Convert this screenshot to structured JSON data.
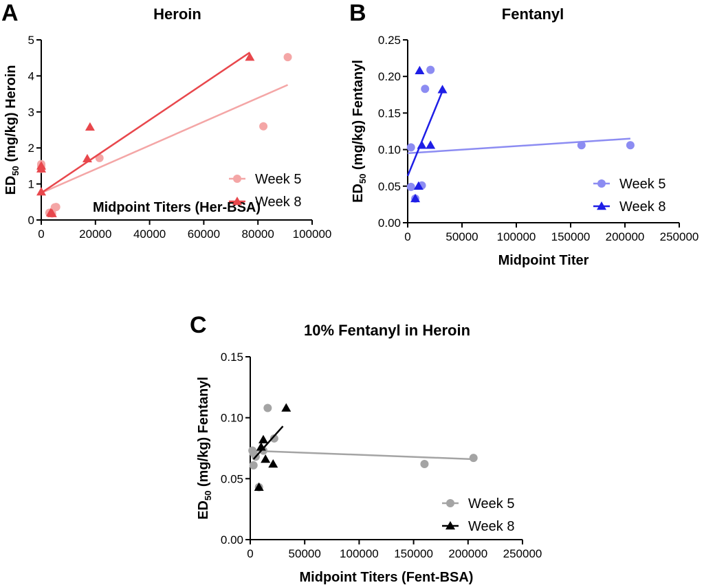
{
  "chart_data": [
    {
      "type": "scatter",
      "panel_letter": "A",
      "title": "Heroin",
      "xlabel": "Midpoint Titers (Her-BSA)",
      "ylabel_main": "ED",
      "ylabel_sub": "50",
      "ylabel_rest": " (mg/kg) Heroin",
      "xlim": [
        0,
        100000
      ],
      "ylim": [
        0,
        5
      ],
      "xticks": [
        0,
        20000,
        40000,
        60000,
        80000,
        100000
      ],
      "yticks": [
        0,
        1,
        2,
        3,
        4,
        5
      ],
      "ytick_decimals": 0,
      "legend_position": "bottom-right",
      "grid": false,
      "series": [
        {
          "name": "Week 5",
          "marker": "circle",
          "color": "#f4a6a6",
          "points": [
            [
              0,
              1.55
            ],
            [
              0,
              1.5
            ],
            [
              0,
              1.42
            ],
            [
              3000,
              0.2
            ],
            [
              4000,
              0.18
            ],
            [
              5000,
              0.35
            ],
            [
              5500,
              0.36
            ],
            [
              21500,
              1.72
            ],
            [
              82000,
              2.6
            ],
            [
              91000,
              4.52
            ]
          ],
          "fit": [
            [
              0,
              0.75
            ],
            [
              91000,
              3.75
            ]
          ]
        },
        {
          "name": "Week 8",
          "marker": "triangle",
          "color": "#e8474c",
          "points": [
            [
              0,
              1.5
            ],
            [
              0,
              1.42
            ],
            [
              0,
              0.78
            ],
            [
              3500,
              0.2
            ],
            [
              4000,
              0.18
            ],
            [
              17000,
              1.7
            ],
            [
              18000,
              2.58
            ],
            [
              77000,
              4.52
            ]
          ],
          "fit": [
            [
              0,
              0.75
            ],
            [
              77000,
              4.65
            ]
          ]
        }
      ]
    },
    {
      "type": "scatter",
      "panel_letter": "B",
      "title": "Fentanyl",
      "xlabel": "Midpoint Titer",
      "ylabel_main": "ED",
      "ylabel_sub": "50",
      "ylabel_rest": " (mg/kg) Fentanyl",
      "xlim": [
        0,
        250000
      ],
      "ylim": [
        0,
        0.25
      ],
      "xticks": [
        0,
        50000,
        100000,
        150000,
        200000,
        250000
      ],
      "yticks": [
        0,
        0.05,
        0.1,
        0.15,
        0.2,
        0.25
      ],
      "ytick_decimals": 2,
      "legend_position": "bottom-right",
      "grid": false,
      "series": [
        {
          "name": "Week 5",
          "marker": "circle",
          "color": "#8c8cf2",
          "points": [
            [
              3000,
              0.103
            ],
            [
              3000,
              0.049
            ],
            [
              7000,
              0.033
            ],
            [
              13000,
              0.051
            ],
            [
              16000,
              0.183
            ],
            [
              21000,
              0.209
            ],
            [
              160000,
              0.106
            ],
            [
              205000,
              0.106
            ]
          ],
          "fit": [
            [
              0,
              0.095
            ],
            [
              205000,
              0.115
            ]
          ]
        },
        {
          "name": "Week 8",
          "marker": "triangle",
          "color": "#1e1ee6",
          "points": [
            [
              7000,
              0.033
            ],
            [
              10000,
              0.05
            ],
            [
              11000,
              0.208
            ],
            [
              13000,
              0.106
            ],
            [
              21000,
              0.106
            ],
            [
              32000,
              0.182
            ]
          ],
          "fit": [
            [
              0,
              0.064
            ],
            [
              32000,
              0.18
            ]
          ]
        }
      ]
    },
    {
      "type": "scatter",
      "panel_letter": "C",
      "title": "10% Fentanyl in Heroin",
      "xlabel": "Midpoint Titers (Fent-BSA)",
      "ylabel_main": "ED",
      "ylabel_sub": "50",
      "ylabel_rest": " (mg/kg) Fentanyl",
      "xlim": [
        0,
        250000
      ],
      "ylim": [
        0,
        0.15
      ],
      "xticks": [
        0,
        50000,
        100000,
        150000,
        200000,
        250000
      ],
      "yticks": [
        0,
        0.05,
        0.1,
        0.15
      ],
      "ytick_decimals": 2,
      "legend_position": "bottom-right",
      "grid": false,
      "series": [
        {
          "name": "Week 5",
          "marker": "circle",
          "color": "#a4a4a4",
          "points": [
            [
              2000,
              0.073
            ],
            [
              3000,
              0.061
            ],
            [
              3000,
              0.071
            ],
            [
              5000,
              0.068
            ],
            [
              8000,
              0.043
            ],
            [
              12000,
              0.073
            ],
            [
              16000,
              0.108
            ],
            [
              22000,
              0.083
            ],
            [
              160000,
              0.062
            ],
            [
              205000,
              0.067
            ]
          ],
          "fit": [
            [
              0,
              0.073
            ],
            [
              205000,
              0.066
            ]
          ]
        },
        {
          "name": "Week 8",
          "marker": "triangle",
          "color": "#000000",
          "points": [
            [
              8000,
              0.043
            ],
            [
              10000,
              0.076
            ],
            [
              12000,
              0.082
            ],
            [
              14000,
              0.066
            ],
            [
              21000,
              0.062
            ],
            [
              33000,
              0.108
            ]
          ],
          "fit": [
            [
              3000,
              0.066
            ],
            [
              30000,
              0.093
            ]
          ]
        }
      ]
    }
  ]
}
